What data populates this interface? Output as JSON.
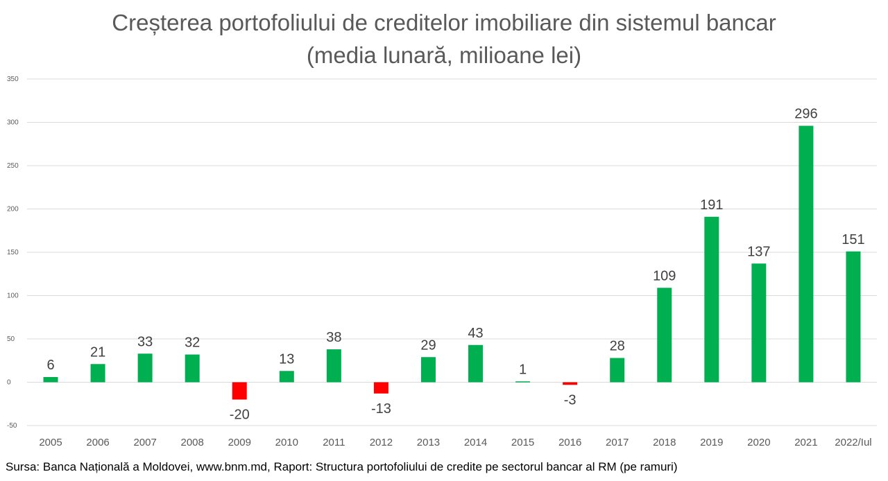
{
  "chart_data": {
    "type": "bar",
    "title": "Creșterea portofoliului de creditelor imobiliare din sistemul bancar",
    "subtitle": "(media lunară, milioane lei)",
    "categories": [
      "2005",
      "2006",
      "2007",
      "2008",
      "2009",
      "2010",
      "2011",
      "2012",
      "2013",
      "2014",
      "2015",
      "2016",
      "2017",
      "2018",
      "2019",
      "2020",
      "2021",
      "2022/Iul"
    ],
    "values": [
      6,
      21,
      33,
      32,
      -20,
      13,
      38,
      -13,
      29,
      43,
      1,
      -3,
      28,
      109,
      191,
      137,
      296,
      151
    ],
    "data_labels": [
      "6",
      "21",
      "33",
      "32",
      "-20",
      "13",
      "38",
      "-13",
      "29",
      "43",
      "1",
      "-3",
      "28",
      "109",
      "191",
      "137",
      "296",
      "151"
    ],
    "ylim": [
      -50,
      350
    ],
    "yticks": [
      -50,
      0,
      50,
      100,
      150,
      200,
      250,
      300,
      350
    ],
    "xlabel": "",
    "ylabel": "",
    "grid": true,
    "legend": "none",
    "colors": {
      "positive": "#00b050",
      "negative": "#ff0000",
      "grid": "#d9d9d9",
      "tick_text": "#595959",
      "label_text": "#404040"
    }
  },
  "footer": {
    "source": "Sursa: Banca Națională a Moldovei, www.bnm.md, Raport: Structura portofoliului de credite pe sectorul bancar al RM (pe ramuri)"
  }
}
